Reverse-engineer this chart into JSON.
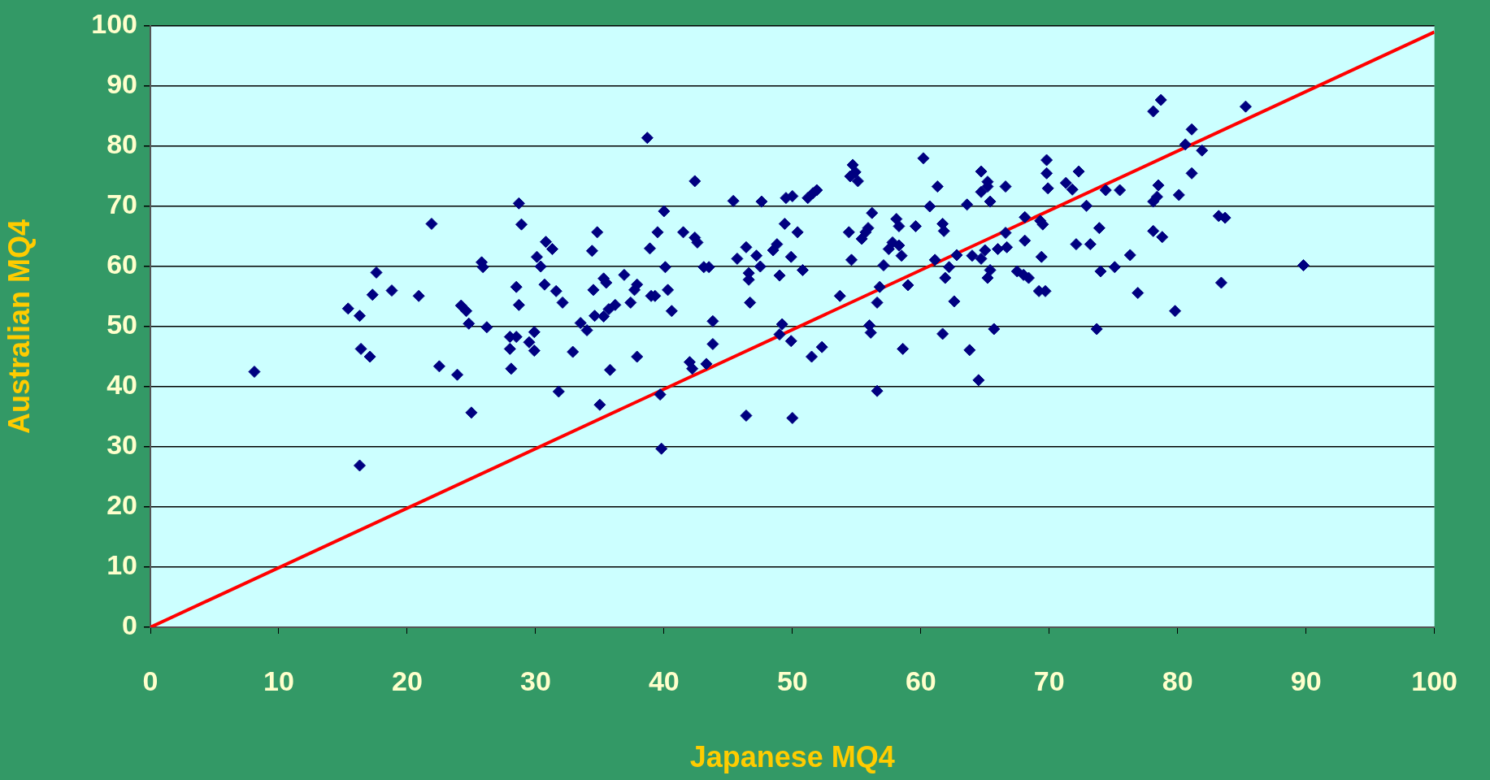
{
  "chart_data": {
    "type": "scatter",
    "xlabel": "Japanese MQ4",
    "ylabel": "Australian MQ4",
    "xlim": [
      0,
      100
    ],
    "xticks": [
      0,
      10,
      20,
      30,
      40,
      50,
      60,
      70,
      80,
      90,
      100
    ],
    "ylim": [
      0,
      100
    ],
    "yticks": [
      0,
      10,
      20,
      30,
      40,
      50,
      60,
      70,
      80,
      90,
      100
    ],
    "grid": "y",
    "legend": false,
    "marker": "diamond",
    "series": [
      {
        "type": "scatter",
        "color": "#000080",
        "x": [
          8.1,
          15.4,
          16.3,
          16.4,
          17.1,
          17.3,
          17.6,
          16.3,
          18.8,
          20.9,
          21.9,
          22.5,
          23.9,
          24.2,
          24.6,
          24.8,
          25,
          25.8,
          25.9,
          26.2,
          28,
          28.1,
          28,
          28.5,
          28.5,
          28.7,
          28.7,
          28.9,
          29.5,
          29.9,
          29.9,
          30.1,
          30.4,
          30.7,
          30.8,
          31.3,
          31.6,
          31.8,
          32.1,
          32.9,
          33.5,
          34,
          34.4,
          34.5,
          34.6,
          34.8,
          35,
          35.3,
          35.3,
          35.5,
          35.7,
          35.8,
          36.2,
          36.9,
          37.4,
          37.7,
          37.9,
          37.9,
          38.7,
          38.9,
          39,
          39.3,
          39.5,
          39.7,
          39.8,
          40,
          40.1,
          40.3,
          40.6,
          41.5,
          42,
          42.2,
          42.4,
          42.4,
          42.6,
          43.1,
          43.5,
          43.3,
          43.8,
          43.8,
          45.4,
          45.7,
          46.4,
          46.4,
          46.6,
          46.6,
          46.7,
          47.2,
          47.5,
          47.6,
          48.5,
          48.8,
          49,
          49,
          49.2,
          49.4,
          49.5,
          49.9,
          49.9,
          50,
          50,
          50.4,
          50.8,
          51.2,
          51.6,
          51.5,
          51.9,
          52.3,
          53.7,
          54.4,
          54.5,
          54.6,
          54.7,
          54.9,
          55.1,
          55.4,
          55.7,
          55.9,
          56.1,
          56,
          56.2,
          56.6,
          56.6,
          56.8,
          57.1,
          57.5,
          57.8,
          58.1,
          58.3,
          58.3,
          58.5,
          58.6,
          59,
          59.6,
          60.2,
          60.7,
          61.1,
          61.3,
          61.7,
          61.7,
          61.8,
          61.9,
          62.2,
          62.6,
          62.8,
          63.6,
          63.8,
          64,
          64.5,
          64.7,
          64.7,
          64.7,
          65,
          65.2,
          65.2,
          65.2,
          65.4,
          65.4,
          65.7,
          66,
          66.6,
          66.6,
          66.7,
          67.5,
          68,
          68.1,
          68.1,
          68.4,
          69.2,
          69.3,
          69.5,
          69.4,
          69.7,
          69.8,
          69.8,
          69.9,
          71.3,
          71.8,
          72.1,
          72.3,
          72.9,
          73.2,
          73.7,
          73.9,
          74,
          74.4,
          75.1,
          75.5,
          76.3,
          76.9,
          78.1,
          78.1,
          78.1,
          78.4,
          78.5,
          78.7,
          78.8,
          79.8,
          80.1,
          80.6,
          81.1,
          81.1,
          81.9,
          83.2,
          83.4,
          83.7,
          85.3,
          89.8
        ],
        "values": [
          42.5,
          53,
          51.8,
          46.3,
          45,
          55.3,
          59,
          26.9,
          56,
          55.1,
          67.1,
          43.4,
          42,
          53.5,
          52.6,
          50.5,
          35.7,
          60.7,
          59.9,
          49.9,
          48.3,
          43,
          46.3,
          56.6,
          48.3,
          70.5,
          53.6,
          67,
          47.4,
          49.1,
          46,
          61.6,
          60,
          57,
          64.1,
          62.9,
          55.9,
          39.2,
          54,
          45.8,
          50.6,
          49.4,
          62.6,
          56.1,
          51.8,
          65.7,
          37,
          51.7,
          58,
          57.3,
          52.9,
          42.8,
          53.6,
          58.6,
          54,
          56.1,
          45,
          57,
          81.4,
          63,
          55.1,
          55.1,
          65.7,
          38.7,
          29.7,
          69.2,
          59.9,
          56.1,
          52.6,
          65.7,
          44.1,
          43,
          74.2,
          64.8,
          64,
          59.9,
          59.9,
          43.8,
          47.1,
          50.9,
          70.9,
          61.3,
          35.2,
          63.2,
          57.8,
          58.9,
          54,
          61.8,
          60,
          70.8,
          62.7,
          63.7,
          58.5,
          48.7,
          50.4,
          67.1,
          71.4,
          47.6,
          61.6,
          34.8,
          71.7,
          65.7,
          59.4,
          71.4,
          72.2,
          45,
          72.7,
          46.6,
          55.1,
          65.7,
          75,
          61.1,
          76.9,
          75.7,
          74.2,
          64.6,
          65.7,
          66.4,
          49,
          50.2,
          68.9,
          39.3,
          54,
          56.6,
          60.2,
          62.9,
          64,
          67.9,
          66.7,
          63.5,
          61.8,
          46.3,
          56.9,
          66.7,
          78,
          70,
          61.1,
          73.3,
          48.8,
          67.1,
          65.9,
          58.1,
          59.9,
          54.2,
          61.9,
          70.3,
          46.1,
          61.8,
          41.1,
          75.8,
          72.4,
          61.3,
          62.7,
          74.1,
          73.3,
          58.1,
          70.8,
          59.4,
          49.6,
          62.9,
          73.3,
          65.6,
          63.2,
          59.2,
          58.6,
          64.3,
          68.2,
          58.1,
          55.9,
          67.6,
          67,
          61.6,
          55.9,
          77.7,
          75.5,
          73,
          73.9,
          72.8,
          63.7,
          75.8,
          70.1,
          63.7,
          49.6,
          66.4,
          59.2,
          72.7,
          59.9,
          72.7,
          61.9,
          55.6,
          85.8,
          70.8,
          65.9,
          71.6,
          73.5,
          87.7,
          64.9,
          52.6,
          71.9,
          80.3,
          82.8,
          75.5,
          79.3,
          68.4,
          57.3,
          68.1,
          86.6,
          60.2
        ]
      },
      {
        "type": "line",
        "color": "#ff0000",
        "marker": "none",
        "line_style": "solid",
        "x": [
          0,
          100
        ],
        "values": [
          0,
          99
        ]
      }
    ]
  }
}
